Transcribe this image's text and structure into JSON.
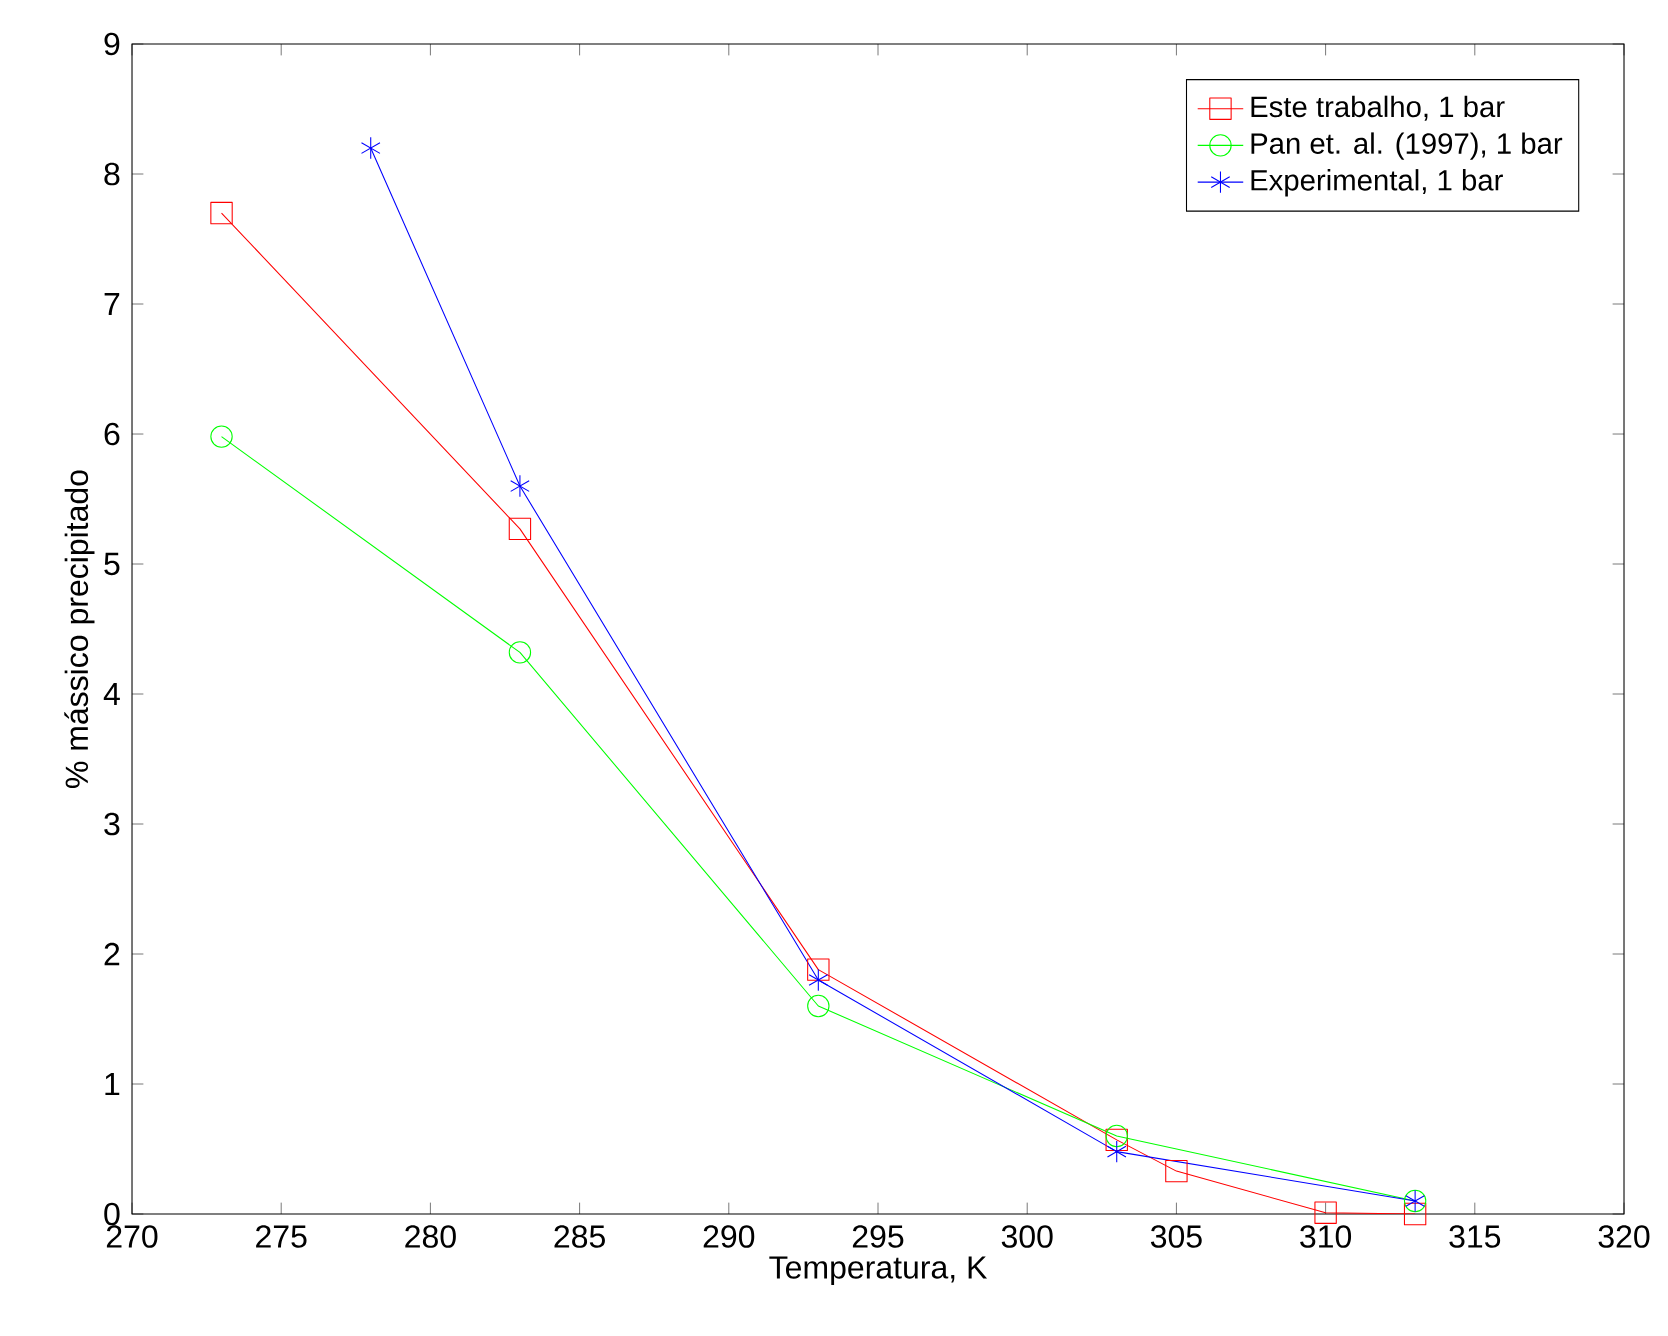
{
  "chart_data": {
    "type": "line",
    "xlabel": "Temperatura, K",
    "ylabel": "% mássico precipitado",
    "xlim": [
      270,
      320
    ],
    "xticks": [
      270,
      275,
      280,
      285,
      290,
      295,
      300,
      305,
      310,
      315,
      320
    ],
    "ylim": [
      0,
      9
    ],
    "yticks": [
      0,
      1,
      2,
      3,
      4,
      5,
      6,
      7,
      8,
      9
    ],
    "grid": false,
    "legend": "top right",
    "line_style": "solid",
    "series": [
      {
        "name": "Este trabalho, 1 bar",
        "color": "#ff0000",
        "marker": "square",
        "x": [
          273,
          283,
          293,
          303,
          305,
          310,
          313
        ],
        "values": [
          7.7,
          5.27,
          1.88,
          0.57,
          0.33,
          0.01,
          0.0
        ]
      },
      {
        "name": "Pan et. al. (1997), 1 bar",
        "color": "#00ff00",
        "marker": "circle",
        "x": [
          273,
          283,
          293,
          303,
          313
        ],
        "values": [
          5.98,
          4.32,
          1.6,
          0.6,
          0.1
        ]
      },
      {
        "name": "Experimental, 1 bar",
        "color": "#0000ff",
        "marker": "cross",
        "x": [
          278,
          283,
          293,
          303,
          313
        ],
        "values": [
          8.2,
          5.6,
          1.8,
          0.48,
          0.1
        ]
      }
    ]
  }
}
